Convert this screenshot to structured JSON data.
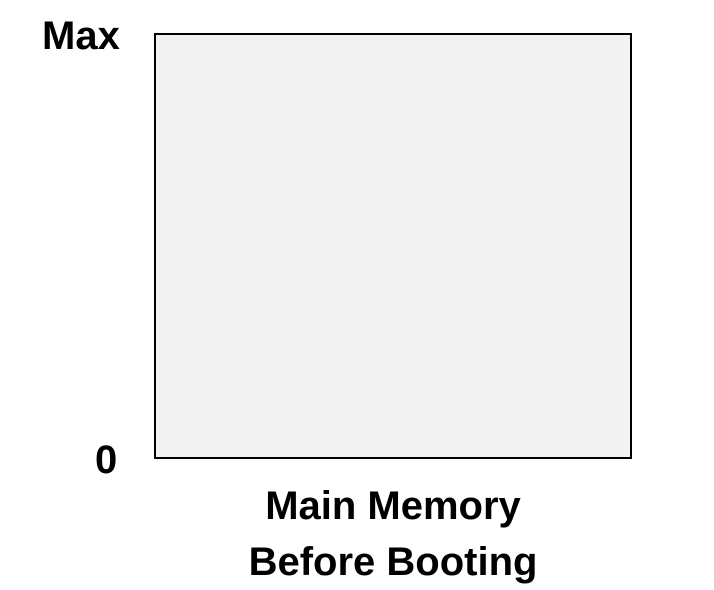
{
  "diagram": {
    "address_max_label": "Max",
    "address_min_label": "0",
    "caption_line1": "Main Memory",
    "caption_line2": "Before Booting"
  },
  "colors": {
    "memory_fill": "#f2f2f2",
    "memory_border": "#000000",
    "text": "#000000",
    "background": "#ffffff"
  }
}
